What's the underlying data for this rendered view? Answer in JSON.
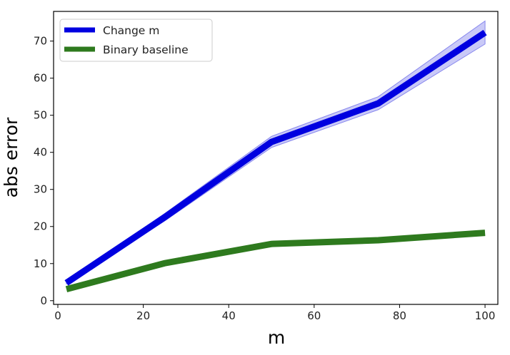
{
  "chart_data": {
    "type": "line",
    "title": "",
    "xlabel": "m",
    "ylabel": "abs error",
    "xlim": [
      -1,
      103
    ],
    "ylim": [
      -1,
      78
    ],
    "xticks": [
      0,
      20,
      40,
      60,
      80,
      100
    ],
    "yticks": [
      0,
      10,
      20,
      30,
      40,
      50,
      60,
      70
    ],
    "grid": false,
    "legend": "top-left",
    "series": [
      {
        "name": "Change m",
        "color": "#0000e0",
        "band_color": "#8888ee",
        "x": [
          2,
          25,
          50,
          75,
          100
        ],
        "y": [
          4.8,
          22.5,
          42.8,
          53.2,
          72.3
        ],
        "y_lower": [
          4.5,
          21.5,
          41.3,
          51.5,
          69.2
        ],
        "y_upper": [
          5.1,
          23.5,
          44.3,
          55.0,
          75.4
        ]
      },
      {
        "name": "Binary baseline",
        "color": "#2e7a1e",
        "x": [
          2,
          25,
          50,
          75,
          100
        ],
        "y": [
          3.1,
          10.1,
          15.3,
          16.3,
          18.3
        ]
      }
    ]
  }
}
